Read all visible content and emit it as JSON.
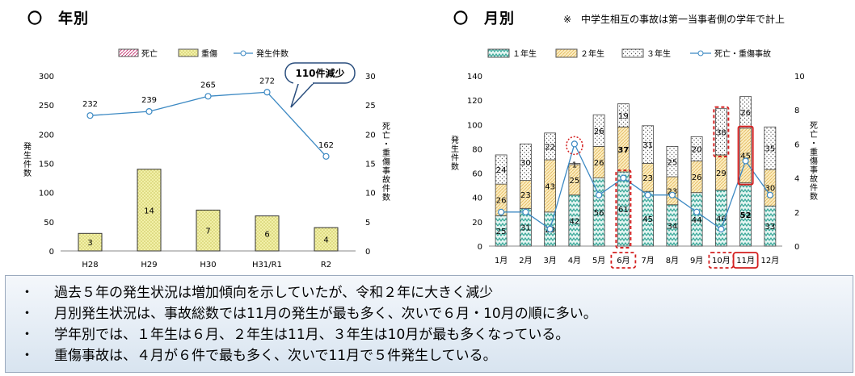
{
  "headers": {
    "yearly": "〇　年別",
    "monthly": "〇　月別",
    "note": "※　中学生相互の事故は第一当事者側の学年で計上"
  },
  "chart_data": [
    {
      "type": "bar",
      "legend": [
        "死亡",
        "重傷",
        "発生件数"
      ],
      "categories": [
        "H28",
        "H29",
        "H30",
        "H31/R1",
        "R2"
      ],
      "series": [
        {
          "name": "死亡",
          "values": [
            0,
            0,
            0,
            0,
            0
          ],
          "axis": "right"
        },
        {
          "name": "重傷",
          "values": [
            3,
            14,
            7,
            6,
            4
          ],
          "axis": "right"
        },
        {
          "name": "発生件数",
          "values": [
            232,
            239,
            265,
            272,
            162
          ],
          "axis": "left",
          "render": "line"
        }
      ],
      "ylabel": "発生件数",
      "y2label": "死亡・重傷事故件数",
      "ylim": [
        0,
        300
      ],
      "y2lim": [
        0,
        30
      ],
      "yticks": [
        0,
        50,
        100,
        150,
        200,
        250,
        300
      ],
      "y2ticks": [
        0,
        5,
        10,
        15,
        20,
        25,
        30
      ],
      "callout": "110件減少"
    },
    {
      "type": "bar",
      "stacked": true,
      "legend": [
        "１年生",
        "２年生",
        "３年生",
        "死亡・重傷事故"
      ],
      "categories": [
        "1月",
        "2月",
        "3月",
        "4月",
        "5月",
        "6月",
        "7月",
        "8月",
        "9月",
        "10月",
        "11月",
        "12月"
      ],
      "series": [
        {
          "name": "１年生",
          "values": [
            25,
            31,
            28,
            42,
            56,
            61,
            45,
            34,
            44,
            46,
            52,
            33
          ]
        },
        {
          "name": "２年生",
          "values": [
            26,
            23,
            43,
            25,
            26,
            37,
            23,
            23,
            26,
            29,
            45,
            30
          ]
        },
        {
          "name": "３年生",
          "values": [
            24,
            30,
            22,
            1,
            26,
            19,
            31,
            25,
            20,
            38,
            26,
            35
          ]
        },
        {
          "name": "死亡・重傷事故",
          "values": [
            2,
            2,
            1,
            6,
            3,
            4,
            3,
            3,
            2,
            1,
            5,
            3
          ],
          "axis": "right",
          "render": "line"
        }
      ],
      "ylabel": "発生件数",
      "y2label": "死亡・重傷事故件数",
      "ylim": [
        0,
        140
      ],
      "y2lim": [
        0,
        10
      ],
      "yticks": [
        0,
        20,
        40,
        60,
        80,
        100,
        120,
        140
      ],
      "y2ticks": [
        0,
        2,
        4,
        6,
        8,
        10
      ],
      "highlight_months": [
        "6月",
        "10月",
        "11月"
      ]
    }
  ],
  "summary": [
    {
      "bullet": "・",
      "text": "過去５年の発生状況は増加傾向を示していたが、令和２年に大きく減少"
    },
    {
      "bullet": "・",
      "text": "月別発生状況は、事故総数では11月の発生が最も多く、次いで６月・10月の順に多い。"
    },
    {
      "bullet": "・",
      "text": "学年別では、１年生は６月、２年生は11月、３年生は10月が最も多くなっている。"
    },
    {
      "bullet": "・",
      "text": "重傷事故は、４月が６件で最も多く、次いで11月で５件発生している。"
    }
  ],
  "colors": {
    "death": "#c8407a",
    "injury": "#e3e081",
    "line": "#3c89c3",
    "grade1": "#5fbfaf",
    "grade2": "#f1d687",
    "grade3": "#7a7a7a",
    "highlight": "#d42020"
  }
}
